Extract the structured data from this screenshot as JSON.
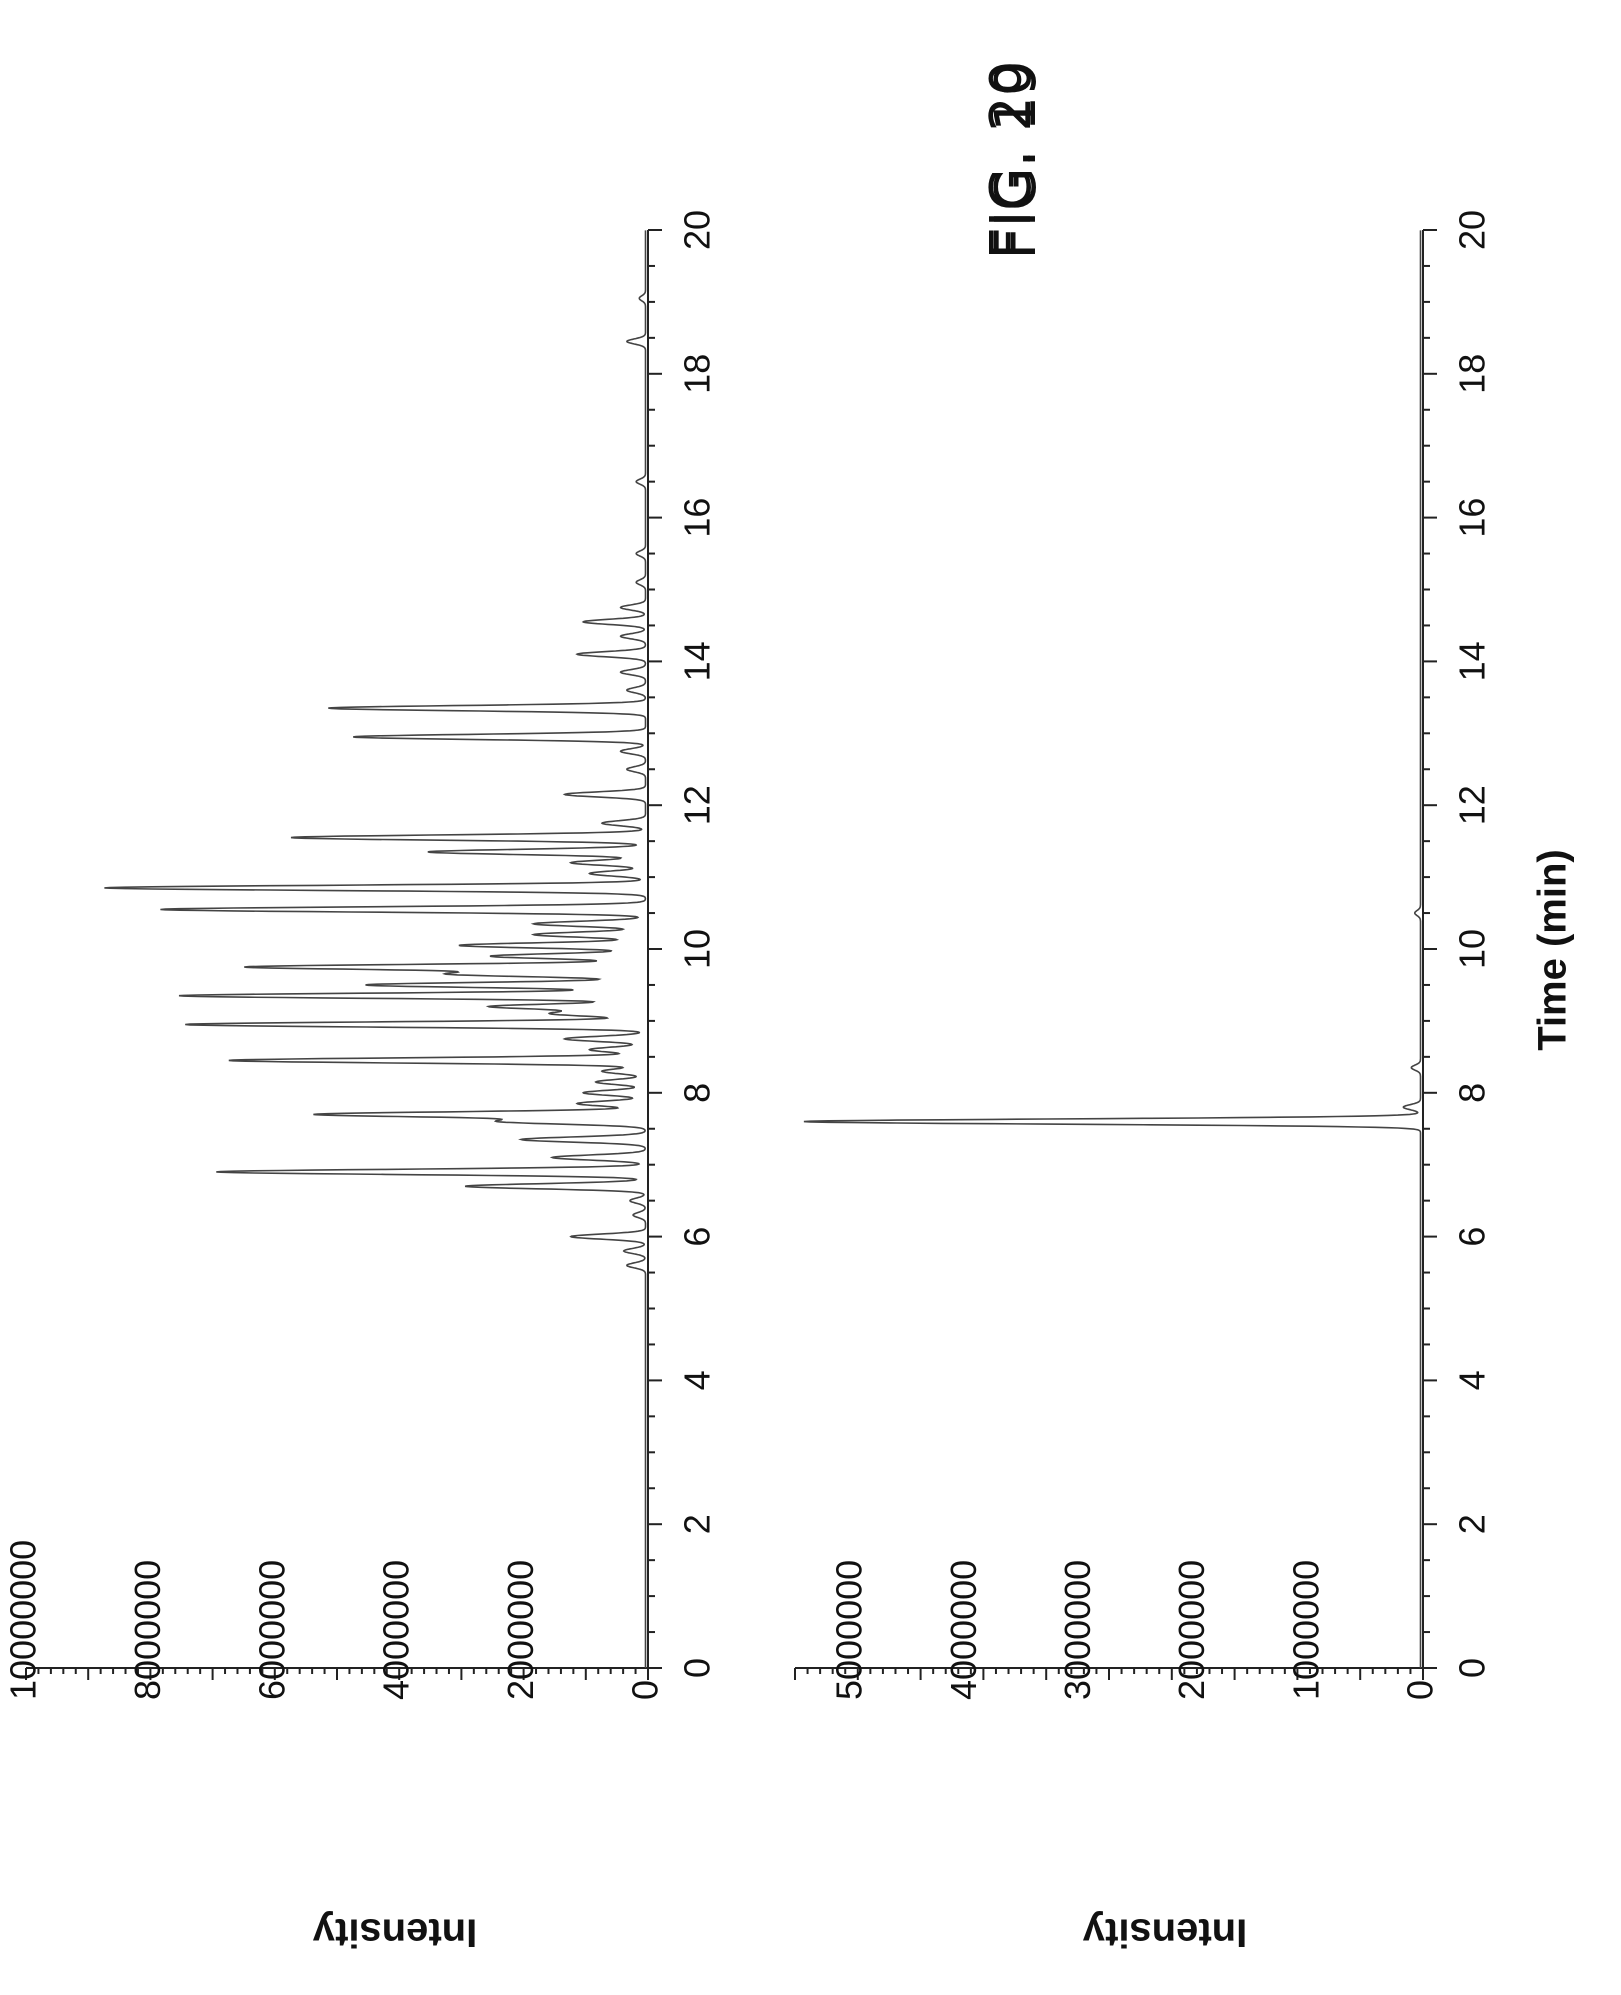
{
  "chart_data": [
    {
      "type": "line",
      "title": "FIG. 19",
      "xlabel": "",
      "ylabel": "Intensity",
      "xlim": [
        0,
        20
      ],
      "ylim": [
        0,
        10000000
      ],
      "x_ticks": [
        "0",
        "2",
        "4",
        "6",
        "8",
        "10",
        "12",
        "14",
        "16",
        "18",
        "20"
      ],
      "y_ticks": [
        "0",
        "2000000",
        "4000000",
        "6000000",
        "8000000",
        "10000000"
      ],
      "peaks": [
        [
          5.6,
          300000
        ],
        [
          5.8,
          350000
        ],
        [
          6.0,
          1200000
        ],
        [
          6.3,
          200000
        ],
        [
          6.5,
          250000
        ],
        [
          6.7,
          2900000
        ],
        [
          6.9,
          6900000
        ],
        [
          7.1,
          1500000
        ],
        [
          7.35,
          2000000
        ],
        [
          7.6,
          2300000
        ],
        [
          7.7,
          5300000
        ],
        [
          7.85,
          1100000
        ],
        [
          8.0,
          1000000
        ],
        [
          8.15,
          800000
        ],
        [
          8.3,
          700000
        ],
        [
          8.45,
          6700000
        ],
        [
          8.6,
          900000
        ],
        [
          8.75,
          1300000
        ],
        [
          8.95,
          7400000
        ],
        [
          9.1,
          1500000
        ],
        [
          9.2,
          2500000
        ],
        [
          9.35,
          7500000
        ],
        [
          9.5,
          4500000
        ],
        [
          9.65,
          3100000
        ],
        [
          9.75,
          6400000
        ],
        [
          9.9,
          2500000
        ],
        [
          10.05,
          3000000
        ],
        [
          10.2,
          1800000
        ],
        [
          10.35,
          1800000
        ],
        [
          10.55,
          7800000
        ],
        [
          10.85,
          8700000
        ],
        [
          11.05,
          900000
        ],
        [
          11.2,
          1200000
        ],
        [
          11.35,
          3500000
        ],
        [
          11.55,
          5700000
        ],
        [
          11.75,
          700000
        ],
        [
          12.15,
          1300000
        ],
        [
          12.5,
          300000
        ],
        [
          12.75,
          400000
        ],
        [
          12.95,
          4700000
        ],
        [
          13.35,
          5100000
        ],
        [
          13.6,
          300000
        ],
        [
          13.85,
          400000
        ],
        [
          14.1,
          1100000
        ],
        [
          14.35,
          400000
        ],
        [
          14.55,
          1000000
        ],
        [
          14.75,
          400000
        ],
        [
          15.1,
          150000
        ],
        [
          15.5,
          150000
        ],
        [
          16.5,
          150000
        ],
        [
          18.45,
          300000
        ],
        [
          19.05,
          100000
        ]
      ]
    },
    {
      "type": "line",
      "title": "FIG. 20",
      "xlabel": "Time (min)",
      "ylabel": "Intensity",
      "xlim": [
        0,
        20
      ],
      "ylim": [
        0,
        5500000
      ],
      "x_ticks": [
        "0",
        "2",
        "4",
        "6",
        "8",
        "10",
        "12",
        "14",
        "16",
        "18",
        "20"
      ],
      "y_ticks": [
        "0",
        "1000000",
        "2000000",
        "3000000",
        "4000000",
        "5000000"
      ],
      "peaks": [
        [
          7.6,
          5400000
        ],
        [
          7.8,
          150000
        ],
        [
          8.35,
          80000
        ],
        [
          10.5,
          50000
        ]
      ]
    }
  ]
}
